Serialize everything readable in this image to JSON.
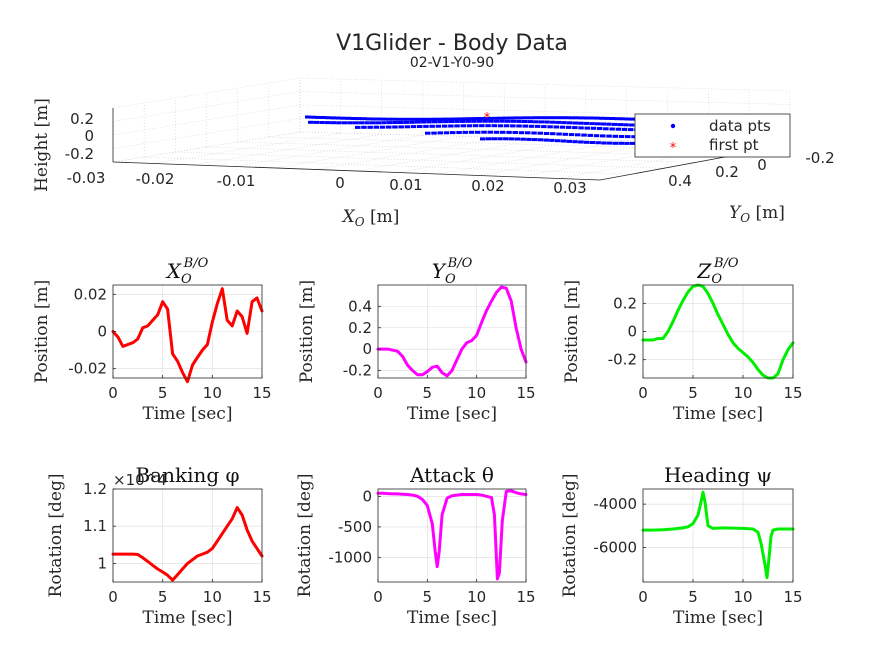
{
  "figure": {
    "title": "V1Glider - Body Data",
    "subtitle": "02-V1-Y0-90"
  },
  "chart_data": [
    {
      "id": "p3d",
      "type": "scatter",
      "projection": "3d",
      "xlabel": "X_O [m]",
      "ylabel": "Y_O [m]",
      "zlabel": "Height [m]",
      "x_ticks": [
        "-0.03",
        "-0.02",
        "-0.01",
        "0",
        "0.01",
        "0.02",
        "0.03"
      ],
      "y_ticks": [
        "0.4",
        "0.2",
        "0",
        "-0.2"
      ],
      "z_ticks": [
        "0.2",
        "0",
        "-0.2"
      ],
      "legend_position": "right",
      "series": [
        {
          "name": "data pts",
          "marker": "dot",
          "color": "#0000ff"
        },
        {
          "name": "first pt",
          "marker": "star",
          "color": "#ff0000"
        }
      ]
    },
    {
      "id": "p1",
      "type": "line",
      "title": "X_O^{B/O}",
      "xlabel": "Time [sec]",
      "ylabel": "Position [m]",
      "color": "#ff0000",
      "xlim": [
        0,
        15
      ],
      "ylim": [
        -0.025,
        0.025
      ],
      "xticks": [
        0,
        5,
        10,
        15
      ],
      "yticks": [
        -0.02,
        0,
        0.02
      ],
      "ytick_labels": [
        "-0.02",
        "0",
        "0.02"
      ],
      "x": [
        0,
        0.5,
        1,
        1.5,
        2,
        2.5,
        3,
        3.5,
        4,
        4.5,
        5,
        5.5,
        6,
        6.5,
        7,
        7.5,
        8,
        8.5,
        9,
        9.5,
        10,
        10.5,
        11,
        11.5,
        12,
        12.5,
        13,
        13.5,
        14,
        14.5,
        15
      ],
      "y": [
        0,
        -0.003,
        -0.008,
        -0.007,
        -0.006,
        -0.004,
        0.002,
        0.003,
        0.006,
        0.009,
        0.016,
        0.012,
        -0.012,
        -0.016,
        -0.022,
        -0.027,
        -0.018,
        -0.014,
        -0.01,
        -0.007,
        0.005,
        0.015,
        0.023,
        0.006,
        0.003,
        0.011,
        0.008,
        -0.001,
        0.016,
        0.018,
        0.011
      ]
    },
    {
      "id": "p2",
      "type": "line",
      "title": "Y_O^{B/O}",
      "xlabel": "Time [sec]",
      "ylabel": "Position [m]",
      "color": "#ff00ff",
      "xlim": [
        0,
        15
      ],
      "ylim": [
        -0.27,
        0.6
      ],
      "xticks": [
        0,
        5,
        10,
        15
      ],
      "yticks": [
        -0.2,
        0,
        0.2,
        0.4
      ],
      "ytick_labels": [
        "-0.2",
        "0",
        "0.2",
        "0.4"
      ],
      "x": [
        0,
        0.5,
        1,
        1.5,
        2,
        2.5,
        3,
        3.5,
        4,
        4.5,
        5,
        5.5,
        6,
        6.5,
        7,
        7.5,
        8,
        8.5,
        9,
        9.5,
        10,
        10.5,
        11,
        11.5,
        12,
        12.5,
        13,
        13.5,
        14,
        14.5,
        15
      ],
      "y": [
        0,
        0,
        0,
        -0.01,
        -0.02,
        -0.07,
        -0.15,
        -0.2,
        -0.24,
        -0.24,
        -0.21,
        -0.17,
        -0.16,
        -0.22,
        -0.25,
        -0.2,
        -0.1,
        0,
        0.06,
        0.08,
        0.13,
        0.25,
        0.36,
        0.45,
        0.53,
        0.58,
        0.57,
        0.45,
        0.2,
        0.0,
        -0.12
      ]
    },
    {
      "id": "p3",
      "type": "line",
      "title": "Z_O^{B/O}",
      "xlabel": "Time [sec]",
      "ylabel": "Position [m]",
      "color": "#00ee00",
      "xlim": [
        0,
        15
      ],
      "ylim": [
        -0.33,
        0.33
      ],
      "xticks": [
        0,
        5,
        10,
        15
      ],
      "yticks": [
        -0.2,
        0,
        0.2
      ],
      "ytick_labels": [
        "-0.2",
        "0",
        "0.2"
      ],
      "x": [
        0,
        0.5,
        1,
        1.5,
        2,
        2.5,
        3,
        3.5,
        4,
        4.5,
        5,
        5.5,
        6,
        6.5,
        7,
        7.5,
        8,
        8.5,
        9,
        9.5,
        10,
        10.5,
        11,
        11.5,
        12,
        12.5,
        13,
        13.5,
        14,
        14.5,
        15
      ],
      "y": [
        -0.06,
        -0.06,
        -0.06,
        -0.05,
        -0.05,
        0.0,
        0.07,
        0.15,
        0.22,
        0.28,
        0.32,
        0.33,
        0.32,
        0.27,
        0.2,
        0.12,
        0.05,
        -0.02,
        -0.08,
        -0.12,
        -0.15,
        -0.18,
        -0.22,
        -0.27,
        -0.31,
        -0.33,
        -0.33,
        -0.3,
        -0.2,
        -0.13,
        -0.08
      ]
    },
    {
      "id": "p4",
      "type": "line",
      "title": "Banking φ",
      "xlabel": "Time [sec]",
      "ylabel": "Rotation [deg]",
      "exponent_label": "×10^4",
      "color": "#ff0000",
      "xlim": [
        0,
        15
      ],
      "ylim": [
        0.95,
        1.2
      ],
      "xticks": [
        0,
        5,
        10,
        15
      ],
      "yticks": [
        1,
        1.1,
        1.2
      ],
      "ytick_labels": [
        "1",
        "1.1",
        "1.2"
      ],
      "x": [
        0,
        0.5,
        1,
        1.5,
        2,
        2.5,
        3,
        3.5,
        4,
        4.5,
        5,
        5.5,
        6,
        6.5,
        7,
        7.5,
        8,
        8.5,
        9,
        9.5,
        10,
        10.5,
        11,
        11.5,
        12,
        12.5,
        13,
        13.5,
        14,
        14.5,
        15
      ],
      "y": [
        1.025,
        1.025,
        1.025,
        1.025,
        1.025,
        1.024,
        1.015,
        1.005,
        0.995,
        0.985,
        0.977,
        0.968,
        0.955,
        0.97,
        0.985,
        1.0,
        1.01,
        1.02,
        1.025,
        1.03,
        1.04,
        1.06,
        1.08,
        1.1,
        1.12,
        1.15,
        1.13,
        1.09,
        1.06,
        1.04,
        1.02
      ]
    },
    {
      "id": "p5",
      "type": "line",
      "title": "Attack θ",
      "xlabel": "Time [sec]",
      "ylabel": "Rotation [deg]",
      "color": "#ff00ff",
      "xlim": [
        0,
        15
      ],
      "ylim": [
        -1400,
        120
      ],
      "xticks": [
        0,
        5,
        10,
        15
      ],
      "yticks": [
        -1000,
        -500,
        0
      ],
      "ytick_labels": [
        "-1000",
        "-500",
        "0"
      ],
      "x": [
        0,
        0.5,
        1,
        1.5,
        2,
        2.5,
        3,
        3.5,
        4,
        4.5,
        5,
        5.5,
        5.8,
        6.0,
        6.2,
        6.5,
        7,
        7.5,
        8,
        8.5,
        9,
        9.5,
        10,
        10.5,
        11,
        11.5,
        11.8,
        12.0,
        12.1,
        12.3,
        12.6,
        13,
        13.5,
        14,
        14.5,
        15
      ],
      "y": [
        50,
        50,
        45,
        40,
        40,
        35,
        30,
        20,
        0,
        -50,
        -150,
        -450,
        -900,
        -1150,
        -900,
        -300,
        -30,
        10,
        20,
        30,
        30,
        30,
        30,
        20,
        0,
        -20,
        -300,
        -1000,
        -1350,
        -1250,
        -400,
        80,
        90,
        60,
        40,
        30
      ]
    },
    {
      "id": "p6",
      "type": "line",
      "title": "Heading ψ",
      "xlabel": "Time [sec]",
      "ylabel": "Rotation [deg]",
      "color": "#00ee00",
      "xlim": [
        0,
        15
      ],
      "ylim": [
        -7600,
        -3300
      ],
      "xticks": [
        0,
        5,
        10,
        15
      ],
      "yticks": [
        -6000,
        -4000
      ],
      "ytick_labels": [
        "-6000",
        "-4000"
      ],
      "x": [
        0,
        1,
        2,
        3,
        4,
        4.5,
        5,
        5.5,
        5.8,
        6.0,
        6.2,
        6.5,
        7,
        8,
        9,
        10,
        11,
        11.5,
        11.8,
        12.0,
        12.2,
        12.4,
        12.6,
        12.8,
        13,
        13.5,
        14,
        14.5,
        15
      ],
      "y": [
        -5200,
        -5200,
        -5180,
        -5150,
        -5100,
        -5050,
        -4900,
        -4500,
        -3900,
        -3450,
        -3900,
        -5000,
        -5120,
        -5100,
        -5110,
        -5120,
        -5150,
        -5300,
        -5800,
        -6300,
        -6800,
        -7400,
        -6500,
        -5500,
        -5200,
        -5150,
        -5150,
        -5150,
        -5150
      ]
    }
  ]
}
